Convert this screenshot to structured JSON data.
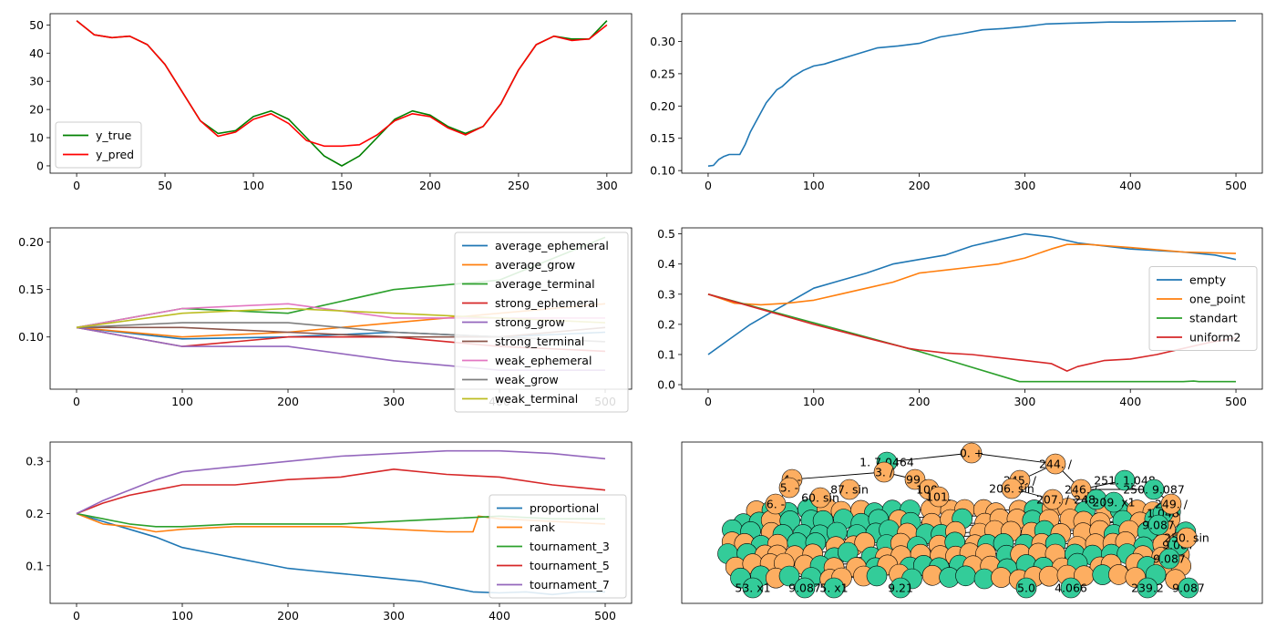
{
  "colors": {
    "c0": "#1f77b4",
    "c1": "#ff7f0e",
    "c2": "#2ca02c",
    "c3": "#d62728",
    "c4": "#9467bd",
    "c5": "#8c564b",
    "c6": "#e377c2",
    "c7": "#7f7f7f",
    "c8": "#bcbd22",
    "node_orange": "#fdae61",
    "node_green": "#33cc99"
  },
  "chart_data": [
    {
      "type": "line",
      "title": "",
      "xlim": [
        -15,
        314
      ],
      "ylim": [
        -2.6,
        54
      ],
      "xticks": [
        0,
        50,
        100,
        150,
        200,
        250,
        300
      ],
      "yticks": [
        0,
        10,
        20,
        30,
        40,
        50
      ],
      "legend": "lower-left",
      "series": [
        {
          "name": "y_true",
          "color": "#008000",
          "x": [
            0,
            10,
            20,
            30,
            40,
            50,
            60,
            70,
            80,
            90,
            100,
            110,
            120,
            130,
            140,
            150,
            160,
            170,
            180,
            190,
            200,
            210,
            220,
            230,
            240,
            250,
            260,
            270,
            280,
            290,
            300
          ],
          "y": [
            51.5,
            46.5,
            45.5,
            46,
            43,
            36,
            26,
            16,
            11.5,
            12.5,
            17.5,
            19.5,
            16.5,
            10,
            3.5,
            0,
            3.5,
            10,
            16.5,
            19.5,
            18,
            14,
            11.5,
            14,
            22,
            34,
            43,
            46,
            45,
            45,
            51.5
          ]
        },
        {
          "name": "y_pred",
          "color": "#ff0000",
          "x": [
            0,
            10,
            20,
            30,
            40,
            50,
            60,
            70,
            80,
            90,
            100,
            110,
            120,
            130,
            140,
            150,
            160,
            170,
            180,
            190,
            200,
            210,
            220,
            230,
            240,
            250,
            260,
            270,
            280,
            290,
            300
          ],
          "y": [
            51.5,
            46.5,
            45.5,
            46,
            43,
            36,
            26,
            16,
            10.5,
            12,
            16.5,
            18.5,
            15,
            9,
            7,
            7,
            7.5,
            11,
            16,
            18.5,
            17.5,
            13.5,
            11,
            14,
            22,
            34,
            43,
            46,
            44.5,
            45,
            50
          ]
        }
      ]
    },
    {
      "type": "line",
      "title": "",
      "xlim": [
        -25,
        525
      ],
      "ylim": [
        0.096,
        0.343
      ],
      "xticks": [
        0,
        100,
        200,
        300,
        400,
        500
      ],
      "yticks": [
        0.1,
        0.15,
        0.2,
        0.25,
        0.3
      ],
      "ytick_labels": [
        "0.10",
        "0.15",
        "0.20",
        "0.25",
        "0.30"
      ],
      "series": [
        {
          "color": "#1f77b4",
          "x": [
            0,
            5,
            10,
            15,
            20,
            30,
            35,
            40,
            45,
            50,
            55,
            60,
            65,
            70,
            80,
            90,
            100,
            110,
            120,
            140,
            160,
            180,
            200,
            220,
            240,
            260,
            280,
            300,
            320,
            340,
            360,
            380,
            400,
            450,
            500
          ],
          "y": [
            0.107,
            0.108,
            0.117,
            0.122,
            0.125,
            0.125,
            0.14,
            0.16,
            0.175,
            0.19,
            0.205,
            0.215,
            0.225,
            0.23,
            0.245,
            0.255,
            0.262,
            0.265,
            0.27,
            0.28,
            0.29,
            0.293,
            0.297,
            0.307,
            0.312,
            0.318,
            0.32,
            0.323,
            0.327,
            0.328,
            0.329,
            0.33,
            0.33,
            0.331,
            0.332
          ]
        }
      ]
    },
    {
      "type": "line",
      "title": "",
      "xlim": [
        -25,
        525
      ],
      "ylim": [
        0.045,
        0.215
      ],
      "xticks": [
        0,
        100,
        200,
        300,
        400,
        500
      ],
      "yticks": [
        0.1,
        0.15,
        0.2
      ],
      "ytick_labels": [
        "0.10",
        "0.15",
        "0.20"
      ],
      "legend": "upper-right",
      "series": [
        {
          "name": "average_ephemeral",
          "color": "#1f77b4",
          "x": [
            0,
            100,
            200,
            300,
            400,
            500
          ],
          "y": [
            0.11,
            0.098,
            0.1,
            0.105,
            0.1,
            0.105
          ]
        },
        {
          "name": "average_grow",
          "color": "#ff7f0e",
          "x": [
            0,
            100,
            200,
            300,
            400,
            500
          ],
          "y": [
            0.11,
            0.1,
            0.105,
            0.115,
            0.125,
            0.135
          ]
        },
        {
          "name": "average_terminal",
          "color": "#2ca02c",
          "x": [
            0,
            100,
            200,
            300,
            400,
            500
          ],
          "y": [
            0.11,
            0.13,
            0.125,
            0.15,
            0.16,
            0.205
          ]
        },
        {
          "name": "strong_ephemeral",
          "color": "#d62728",
          "x": [
            0,
            100,
            200,
            300,
            400,
            500
          ],
          "y": [
            0.11,
            0.09,
            0.1,
            0.1,
            0.09,
            0.085
          ]
        },
        {
          "name": "strong_grow",
          "color": "#9467bd",
          "x": [
            0,
            100,
            200,
            300,
            400,
            500
          ],
          "y": [
            0.11,
            0.09,
            0.09,
            0.075,
            0.065,
            0.065
          ]
        },
        {
          "name": "strong_terminal",
          "color": "#8c564b",
          "x": [
            0,
            100,
            200,
            300,
            400,
            500
          ],
          "y": [
            0.11,
            0.11,
            0.105,
            0.1,
            0.1,
            0.11
          ]
        },
        {
          "name": "weak_ephemeral",
          "color": "#e377c2",
          "x": [
            0,
            100,
            200,
            300,
            400,
            500
          ],
          "y": [
            0.11,
            0.13,
            0.135,
            0.12,
            0.12,
            0.12
          ]
        },
        {
          "name": "weak_grow",
          "color": "#7f7f7f",
          "x": [
            0,
            100,
            200,
            300,
            400,
            500
          ],
          "y": [
            0.11,
            0.115,
            0.115,
            0.105,
            0.1,
            0.095
          ]
        },
        {
          "name": "weak_terminal",
          "color": "#bcbd22",
          "x": [
            0,
            100,
            200,
            300,
            400,
            500
          ],
          "y": [
            0.11,
            0.125,
            0.13,
            0.125,
            0.12,
            0.115
          ]
        }
      ]
    },
    {
      "type": "line",
      "title": "",
      "xlim": [
        -25,
        525
      ],
      "ylim": [
        -0.015,
        0.52
      ],
      "xticks": [
        0,
        100,
        200,
        300,
        400,
        500
      ],
      "yticks": [
        0.0,
        0.1,
        0.2,
        0.3,
        0.4,
        0.5
      ],
      "ytick_labels": [
        "0.0",
        "0.1",
        "0.2",
        "0.3",
        "0.4",
        "0.5"
      ],
      "legend": "center-right",
      "series": [
        {
          "name": "empty",
          "color": "#1f77b4",
          "x": [
            0,
            20,
            40,
            60,
            80,
            100,
            125,
            150,
            175,
            200,
            225,
            250,
            275,
            300,
            325,
            350,
            400,
            450,
            480,
            500
          ],
          "y": [
            0.1,
            0.15,
            0.2,
            0.24,
            0.28,
            0.32,
            0.345,
            0.37,
            0.4,
            0.415,
            0.43,
            0.46,
            0.48,
            0.5,
            0.49,
            0.47,
            0.45,
            0.44,
            0.43,
            0.415
          ]
        },
        {
          "name": "one_point",
          "color": "#ff7f0e",
          "x": [
            0,
            25,
            50,
            75,
            100,
            125,
            150,
            175,
            200,
            225,
            250,
            275,
            300,
            325,
            340,
            360,
            400,
            450,
            500
          ],
          "y": [
            0.3,
            0.27,
            0.265,
            0.27,
            0.28,
            0.3,
            0.32,
            0.34,
            0.37,
            0.38,
            0.39,
            0.4,
            0.42,
            0.45,
            0.465,
            0.465,
            0.455,
            0.44,
            0.435
          ]
        },
        {
          "name": "standart",
          "color": "#2ca02c",
          "x": [
            0,
            100,
            200,
            295,
            350,
            400,
            450,
            460,
            465,
            500
          ],
          "y": [
            0.3,
            0.205,
            0.11,
            0.01,
            0.01,
            0.01,
            0.01,
            0.012,
            0.01,
            0.01
          ]
        },
        {
          "name": "uniform2",
          "color": "#d62728",
          "x": [
            0,
            50,
            100,
            150,
            190,
            200,
            225,
            250,
            275,
            300,
            325,
            340,
            350,
            375,
            400,
            425,
            450,
            475,
            500
          ],
          "y": [
            0.3,
            0.25,
            0.2,
            0.155,
            0.12,
            0.115,
            0.105,
            0.1,
            0.09,
            0.08,
            0.07,
            0.045,
            0.06,
            0.08,
            0.085,
            0.1,
            0.12,
            0.14,
            0.155
          ]
        }
      ]
    },
    {
      "type": "line",
      "title": "",
      "xlim": [
        -25,
        525
      ],
      "ylim": [
        0.028,
        0.337
      ],
      "xticks": [
        0,
        100,
        200,
        300,
        400,
        500
      ],
      "yticks": [
        0.1,
        0.2,
        0.3
      ],
      "ytick_labels": [
        "0.1",
        "0.2",
        "0.3"
      ],
      "legend": "lower-right",
      "series": [
        {
          "name": "proportional",
          "color": "#1f77b4",
          "x": [
            0,
            25,
            50,
            75,
            100,
            125,
            150,
            175,
            200,
            225,
            250,
            275,
            300,
            325,
            350,
            375,
            400,
            425,
            450,
            475,
            500
          ],
          "y": [
            0.2,
            0.185,
            0.17,
            0.155,
            0.135,
            0.125,
            0.115,
            0.105,
            0.095,
            0.09,
            0.085,
            0.08,
            0.075,
            0.07,
            0.06,
            0.05,
            0.048,
            0.05,
            0.045,
            0.05,
            0.05
          ]
        },
        {
          "name": "rank",
          "color": "#ff7f0e",
          "x": [
            0,
            25,
            50,
            75,
            100,
            150,
            200,
            250,
            300,
            350,
            375,
            380,
            400,
            450,
            500
          ],
          "y": [
            0.2,
            0.18,
            0.175,
            0.165,
            0.17,
            0.175,
            0.175,
            0.175,
            0.17,
            0.165,
            0.165,
            0.195,
            0.19,
            0.185,
            0.18
          ]
        },
        {
          "name": "tournament_3",
          "color": "#2ca02c",
          "x": [
            0,
            25,
            50,
            75,
            100,
            150,
            200,
            250,
            300,
            350,
            400,
            450,
            500
          ],
          "y": [
            0.2,
            0.19,
            0.18,
            0.175,
            0.175,
            0.18,
            0.18,
            0.18,
            0.185,
            0.19,
            0.195,
            0.19,
            0.19
          ]
        },
        {
          "name": "tournament_5",
          "color": "#d62728",
          "x": [
            0,
            25,
            50,
            75,
            100,
            150,
            200,
            250,
            300,
            350,
            400,
            450,
            500
          ],
          "y": [
            0.2,
            0.22,
            0.235,
            0.245,
            0.255,
            0.255,
            0.265,
            0.27,
            0.285,
            0.275,
            0.27,
            0.255,
            0.245
          ]
        },
        {
          "name": "tournament_7",
          "color": "#9467bd",
          "x": [
            0,
            25,
            50,
            75,
            100,
            150,
            200,
            250,
            300,
            350,
            400,
            450,
            500
          ],
          "y": [
            0.2,
            0.225,
            0.245,
            0.265,
            0.28,
            0.29,
            0.3,
            0.31,
            0.315,
            0.32,
            0.32,
            0.315,
            0.305
          ]
        }
      ]
    },
    {
      "type": "diagram",
      "title": "",
      "nodes": [
        {
          "label": "0. +",
          "color": "orange"
        },
        {
          "label": "1. 7.0464",
          "color": "green"
        },
        {
          "label": "4. -",
          "color": "orange"
        },
        {
          "label": "3. /",
          "color": "orange"
        },
        {
          "label": "99.",
          "color": "orange"
        },
        {
          "label": "5. -",
          "color": "orange"
        },
        {
          "label": "87. sin",
          "color": "orange"
        },
        {
          "label": "6. -",
          "color": "orange"
        },
        {
          "label": "60. sin",
          "color": "orange"
        },
        {
          "label": "100.",
          "color": "orange"
        },
        {
          "label": "245. /",
          "color": "orange"
        },
        {
          "label": "244. /",
          "color": "orange"
        },
        {
          "label": "206. sin",
          "color": "orange"
        },
        {
          "label": "246. /",
          "color": "orange"
        },
        {
          "label": "251. 1.048",
          "color": "green"
        },
        {
          "label": "250. 9.087",
          "color": "green"
        },
        {
          "label": "101.",
          "color": "orange"
        },
        {
          "label": "207. /",
          "color": "orange"
        },
        {
          "label": "248. sin",
          "color": "green"
        },
        {
          "label": "209. x1",
          "color": "green"
        },
        {
          "label": "1.048",
          "color": "green"
        },
        {
          "label": "9.087",
          "color": "green"
        },
        {
          "label": "9.087",
          "color": "green"
        },
        {
          "label": "249. /",
          "color": "orange"
        },
        {
          "label": "250. sin",
          "color": "orange"
        },
        {
          "label": "9.087",
          "color": "green"
        },
        {
          "label": "53. x1",
          "color": "green"
        },
        {
          "label": "9.087",
          "color": "green"
        },
        {
          "label": "5. x1",
          "color": "green"
        },
        {
          "label": "9.21",
          "color": "green"
        },
        {
          "label": "5.0",
          "color": "green"
        },
        {
          "label": "4.066",
          "color": "green"
        },
        {
          "label": "239.2",
          "color": "green"
        },
        {
          "label": "9.087",
          "color": "green"
        }
      ]
    }
  ]
}
